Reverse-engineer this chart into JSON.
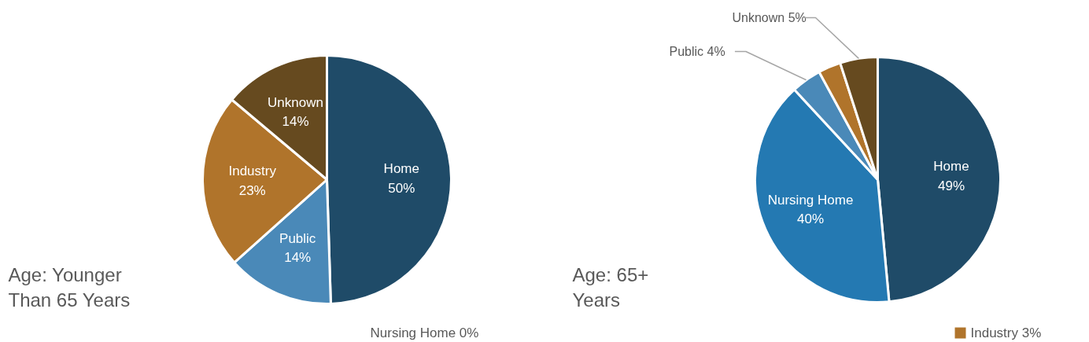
{
  "chart_data": [
    {
      "type": "pie",
      "title": "Age: Younger Than 65 Years",
      "categories": [
        "Home",
        "Nursing Home",
        "Public",
        "Industry",
        "Unknown"
      ],
      "values": [
        50,
        0,
        14,
        23,
        14
      ],
      "colors": [
        "#1f4b68",
        "#2479b2",
        "#4a89b8",
        "#b0742b",
        "#664a1f"
      ],
      "data_labels": true,
      "value_labels": [
        "50%",
        "0%",
        "14%",
        "23%",
        "14%"
      ]
    },
    {
      "type": "pie",
      "title": "Age: 65+ Years",
      "categories": [
        "Home",
        "Nursing Home",
        "Public",
        "Industry",
        "Unknown"
      ],
      "values": [
        49,
        40,
        4,
        3,
        5
      ],
      "colors": [
        "#1f4b68",
        "#2479b2",
        "#4a89b8",
        "#b0742b",
        "#664a1f"
      ],
      "data_labels": true,
      "value_labels": [
        "49%",
        "40%",
        "4%",
        "3%",
        "5%"
      ]
    }
  ]
}
